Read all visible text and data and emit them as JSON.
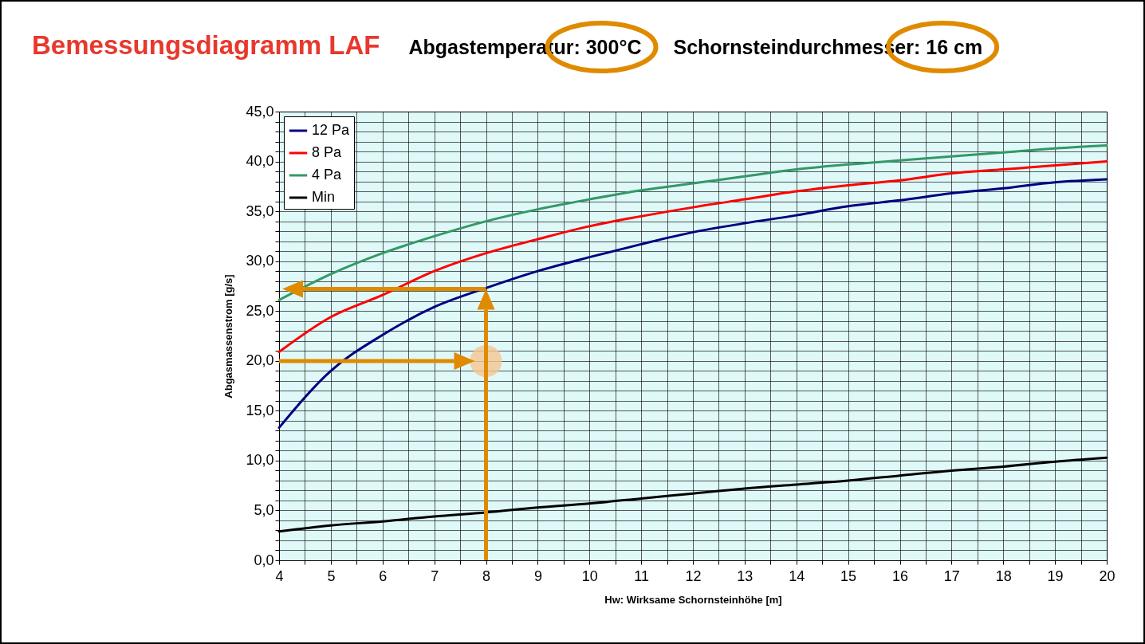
{
  "chart_data": {
    "type": "line",
    "title": "Bemessungsdiagramm LAF",
    "annotations": [
      "Abgastemperatur: 300°C",
      "Schornsteindurchmesser: 16 cm"
    ],
    "xlabel": "Hw: Wirksame Schornsteinhöhe [m]",
    "ylabel": "Abgasmassenstrom [g/s]",
    "x": [
      4,
      5,
      6,
      7,
      8,
      9,
      10,
      11,
      12,
      13,
      14,
      15,
      16,
      17,
      18,
      19,
      20
    ],
    "series": [
      {
        "name": "12 Pa",
        "color": "#000080",
        "values": [
          13.3,
          19.0,
          22.6,
          25.4,
          27.3,
          29.0,
          30.4,
          31.7,
          32.9,
          33.8,
          34.6,
          35.5,
          36.1,
          36.8,
          37.3,
          37.9,
          38.2
        ]
      },
      {
        "name": "8 Pa",
        "color": "#ff0000",
        "values": [
          20.9,
          24.4,
          26.6,
          29.0,
          30.8,
          32.2,
          33.5,
          34.5,
          35.4,
          36.2,
          37.0,
          37.6,
          38.1,
          38.8,
          39.2,
          39.6,
          40.0
        ]
      },
      {
        "name": "4 Pa",
        "color": "#339966",
        "values": [
          26.1,
          28.7,
          30.8,
          32.5,
          34.0,
          35.2,
          36.2,
          37.1,
          37.8,
          38.5,
          39.2,
          39.7,
          40.1,
          40.5,
          40.9,
          41.3,
          41.6
        ]
      },
      {
        "name": "Min",
        "color": "#000000",
        "values": [
          2.9,
          3.5,
          3.9,
          4.4,
          4.8,
          5.3,
          5.7,
          6.2,
          6.7,
          7.2,
          7.6,
          8.0,
          8.5,
          9.0,
          9.4,
          9.9,
          10.3
        ]
      }
    ],
    "xlim": [
      4,
      20
    ],
    "ylim": [
      0,
      45
    ],
    "xticks": [
      4,
      {
        "value": 4.5,
        "label": null
      },
      5,
      {
        "value": 5.5,
        "label": null
      },
      6,
      {
        "value": 6.5,
        "label": null
      },
      7,
      {
        "value": 7.5,
        "label": null
      },
      8,
      {
        "value": 8.5,
        "label": null
      },
      9,
      {
        "value": 9.5,
        "label": null
      },
      10,
      {
        "value": 10.5,
        "label": null
      },
      11,
      {
        "value": 11.5,
        "label": null
      },
      12,
      {
        "value": 12.5,
        "label": null
      },
      13,
      {
        "value": 13.5,
        "label": null
      },
      14,
      {
        "value": 14.5,
        "label": null
      },
      15,
      {
        "value": 15.5,
        "label": null
      },
      16,
      {
        "value": 16.5,
        "label": null
      },
      17,
      {
        "value": 17.5,
        "label": null
      },
      18,
      {
        "value": 18.5,
        "label": null
      },
      19,
      {
        "value": 19.5,
        "label": null
      },
      20
    ],
    "yticks": [
      {
        "value": 0,
        "label": "0,0"
      },
      {
        "value": 1,
        "label": null
      },
      {
        "value": 2,
        "label": null
      },
      {
        "value": 3,
        "label": null
      },
      {
        "value": 4,
        "label": null
      },
      {
        "value": 5,
        "label": "5,0"
      },
      {
        "value": 6,
        "label": null
      },
      {
        "value": 7,
        "label": null
      },
      {
        "value": 8,
        "label": null
      },
      {
        "value": 9,
        "label": null
      },
      {
        "value": 10,
        "label": "10,0"
      },
      {
        "value": 11,
        "label": null
      },
      {
        "value": 12,
        "label": null
      },
      {
        "value": 13,
        "label": null
      },
      {
        "value": 14,
        "label": null
      },
      {
        "value": 15,
        "label": "15,0"
      },
      {
        "value": 16,
        "label": null
      },
      {
        "value": 17,
        "label": null
      },
      {
        "value": 18,
        "label": null
      },
      {
        "value": 19,
        "label": null
      },
      {
        "value": 20,
        "label": "20,0"
      },
      {
        "value": 21,
        "label": null
      },
      {
        "value": 22,
        "label": null
      },
      {
        "value": 23,
        "label": null
      },
      {
        "value": 24,
        "label": null
      },
      {
        "value": 25,
        "label": "25,0"
      },
      {
        "value": 26,
        "label": null
      },
      {
        "value": 27,
        "label": null
      },
      {
        "value": 28,
        "label": null
      },
      {
        "value": 29,
        "label": null
      },
      {
        "value": 30,
        "label": "30,0"
      },
      {
        "value": 31,
        "label": null
      },
      {
        "value": 32,
        "label": null
      },
      {
        "value": 33,
        "label": null
      },
      {
        "value": 34,
        "label": null
      },
      {
        "value": 35,
        "label": "35,0"
      },
      {
        "value": 36,
        "label": null
      },
      {
        "value": 37,
        "label": null
      },
      {
        "value": 38,
        "label": null
      },
      {
        "value": 39,
        "label": null
      },
      {
        "value": 40,
        "label": "40,0"
      },
      {
        "value": 41,
        "label": null
      },
      {
        "value": 42,
        "label": null
      },
      {
        "value": 43,
        "label": null
      },
      {
        "value": 44,
        "label": null
      },
      {
        "value": 45,
        "label": "45,0"
      }
    ],
    "grid": true,
    "legend": "top left",
    "line_style": "solid"
  }
}
